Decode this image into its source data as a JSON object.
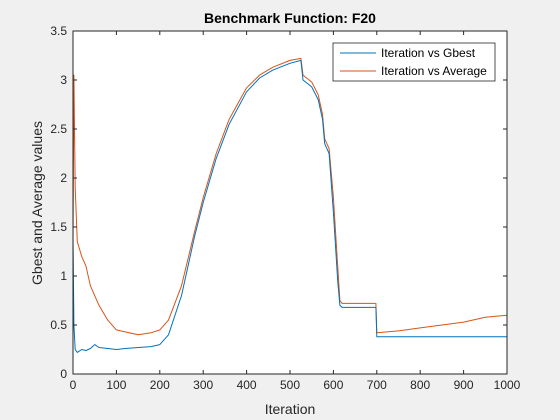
{
  "chart_data": {
    "type": "line",
    "title": "Benchmark Function: F20",
    "xlabel": "Iteration",
    "ylabel": "Gbest and Average values",
    "xlim": [
      0,
      1000
    ],
    "ylim": [
      0,
      3.5
    ],
    "xticks": [
      0,
      100,
      200,
      300,
      400,
      500,
      600,
      700,
      800,
      900,
      1000
    ],
    "yticks": [
      0,
      0.5,
      1,
      1.5,
      2,
      2.5,
      3,
      3.5
    ],
    "xtick_labels": [
      "0",
      "100",
      "200",
      "300",
      "400",
      "500",
      "600",
      "700",
      "800",
      "900",
      "1000"
    ],
    "ytick_labels": [
      "0",
      "0.5",
      "1",
      "1.5",
      "2",
      "2.5",
      "3",
      "3.5"
    ],
    "grid": false,
    "legend_position": "top-right",
    "series": [
      {
        "name": "Iteration vs Gbest",
        "color": "#0072BD",
        "x": [
          0,
          2,
          5,
          10,
          20,
          30,
          40,
          50,
          60,
          80,
          100,
          120,
          150,
          180,
          200,
          220,
          250,
          280,
          300,
          330,
          360,
          400,
          430,
          460,
          500,
          525,
          530,
          550,
          565,
          575,
          580,
          590,
          600,
          610,
          615,
          620,
          650,
          680,
          698,
          700,
          750,
          800,
          850,
          900,
          950,
          1000
        ],
        "y": [
          1.4,
          0.5,
          0.25,
          0.22,
          0.25,
          0.24,
          0.26,
          0.3,
          0.27,
          0.26,
          0.25,
          0.26,
          0.27,
          0.28,
          0.3,
          0.4,
          0.8,
          1.4,
          1.75,
          2.2,
          2.55,
          2.88,
          3.02,
          3.1,
          3.17,
          3.2,
          3.0,
          2.93,
          2.8,
          2.6,
          2.35,
          2.25,
          1.65,
          0.95,
          0.7,
          0.68,
          0.68,
          0.68,
          0.68,
          0.38,
          0.38,
          0.38,
          0.38,
          0.38,
          0.38,
          0.38
        ]
      },
      {
        "name": "Iteration vs Average",
        "color": "#D95319",
        "x": [
          0,
          2,
          5,
          10,
          20,
          30,
          40,
          50,
          60,
          80,
          100,
          120,
          150,
          180,
          200,
          220,
          250,
          280,
          300,
          330,
          360,
          400,
          430,
          460,
          500,
          525,
          530,
          550,
          565,
          575,
          580,
          590,
          600,
          610,
          615,
          620,
          650,
          680,
          698,
          700,
          750,
          800,
          850,
          900,
          950,
          1000
        ],
        "y": [
          1.3,
          3.05,
          1.9,
          1.35,
          1.2,
          1.1,
          0.9,
          0.8,
          0.7,
          0.55,
          0.45,
          0.43,
          0.4,
          0.42,
          0.45,
          0.55,
          0.9,
          1.45,
          1.8,
          2.25,
          2.6,
          2.92,
          3.05,
          3.13,
          3.2,
          3.22,
          3.05,
          2.98,
          2.85,
          2.65,
          2.4,
          2.3,
          1.8,
          1.1,
          0.75,
          0.72,
          0.72,
          0.72,
          0.72,
          0.42,
          0.44,
          0.47,
          0.5,
          0.53,
          0.58,
          0.6
        ]
      }
    ]
  }
}
